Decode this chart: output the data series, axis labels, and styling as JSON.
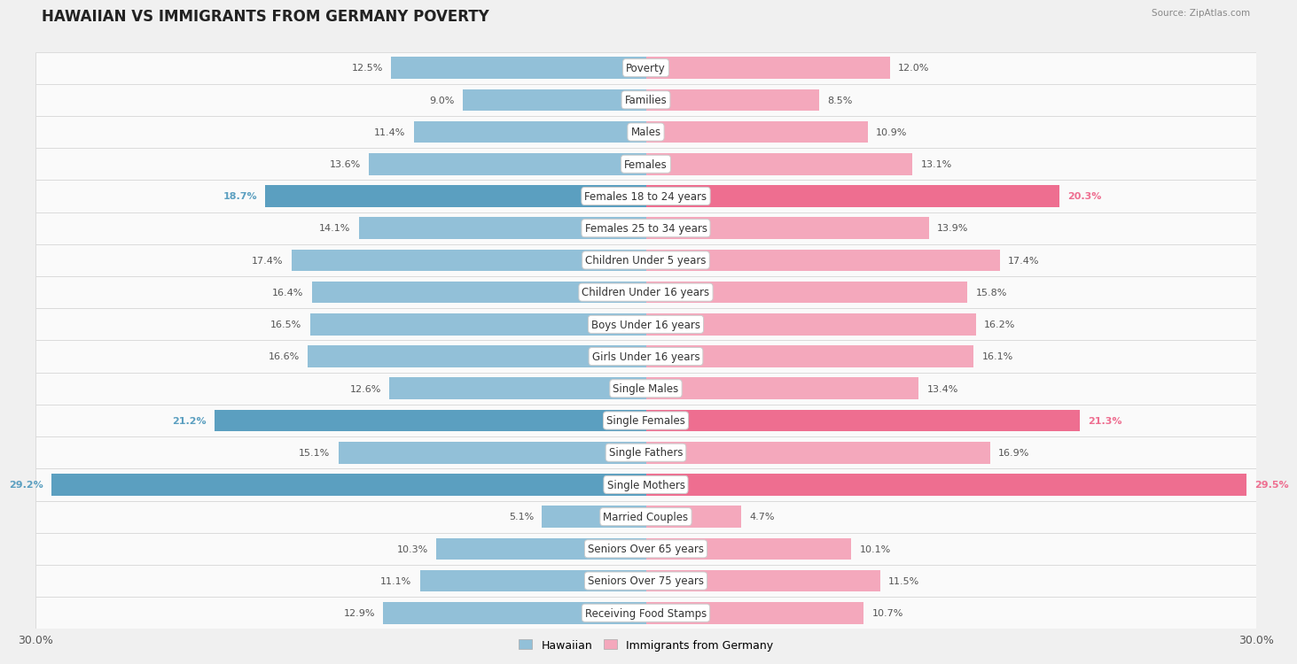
{
  "title": "HAWAIIAN VS IMMIGRANTS FROM GERMANY POVERTY",
  "source": "Source: ZipAtlas.com",
  "categories": [
    "Poverty",
    "Families",
    "Males",
    "Females",
    "Females 18 to 24 years",
    "Females 25 to 34 years",
    "Children Under 5 years",
    "Children Under 16 years",
    "Boys Under 16 years",
    "Girls Under 16 years",
    "Single Males",
    "Single Females",
    "Single Fathers",
    "Single Mothers",
    "Married Couples",
    "Seniors Over 65 years",
    "Seniors Over 75 years",
    "Receiving Food Stamps"
  ],
  "hawaiian": [
    12.5,
    9.0,
    11.4,
    13.6,
    18.7,
    14.1,
    17.4,
    16.4,
    16.5,
    16.6,
    12.6,
    21.2,
    15.1,
    29.2,
    5.1,
    10.3,
    11.1,
    12.9
  ],
  "germany": [
    12.0,
    8.5,
    10.9,
    13.1,
    20.3,
    13.9,
    17.4,
    15.8,
    16.2,
    16.1,
    13.4,
    21.3,
    16.9,
    29.5,
    4.7,
    10.1,
    11.5,
    10.7
  ],
  "hawaiian_color": "#92c0d8",
  "germany_color": "#f4a8bc",
  "highlight_hawaiian_color": "#5b9fc0",
  "highlight_germany_color": "#ee6e90",
  "background_color": "#f0f0f0",
  "row_bg_color": "#fafafa",
  "max_value": 30.0,
  "label_fontsize": 8.5,
  "title_fontsize": 12,
  "value_fontsize": 8,
  "highlight_threshold": 18.0
}
